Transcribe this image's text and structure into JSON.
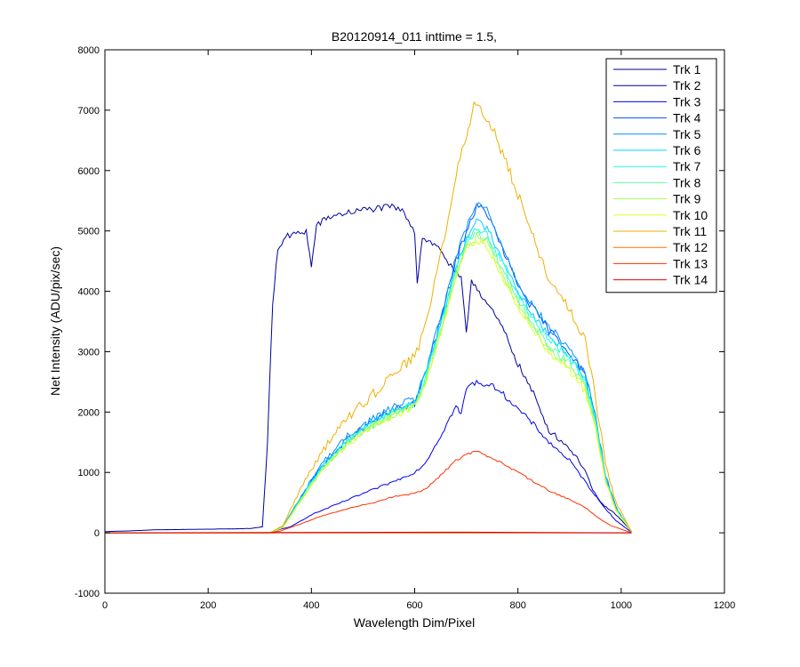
{
  "chart_data": {
    "type": "line",
    "title": "B20120914_011 inttime = 1.5,",
    "xlabel": "Wavelength Dim/Pixel",
    "ylabel": "Net Intensity (ADU/pix/sec)",
    "xlim": [
      0,
      1200
    ],
    "ylim": [
      -1000,
      8000
    ],
    "xticks": [
      0,
      200,
      400,
      600,
      800,
      1000,
      1200
    ],
    "yticks": [
      -1000,
      0,
      1000,
      2000,
      3000,
      4000,
      5000,
      6000,
      7000,
      8000
    ],
    "grid": false,
    "legend_position": "top-right",
    "series": [
      {
        "name": "Trk 1",
        "color": "#00008f",
        "noise": 0,
        "points": [
          [
            0,
            0
          ],
          [
            1020,
            0
          ]
        ]
      },
      {
        "name": "Trk 2",
        "color": "#00009f",
        "noise": 110,
        "points": [
          [
            0,
            20
          ],
          [
            40,
            30
          ],
          [
            100,
            50
          ],
          [
            200,
            60
          ],
          [
            280,
            70
          ],
          [
            305,
            100
          ],
          [
            315,
            1500
          ],
          [
            325,
            3800
          ],
          [
            335,
            4700
          ],
          [
            350,
            4900
          ],
          [
            390,
            5000
          ],
          [
            400,
            4400
          ],
          [
            410,
            5100
          ],
          [
            440,
            5250
          ],
          [
            500,
            5350
          ],
          [
            560,
            5400
          ],
          [
            580,
            5300
          ],
          [
            600,
            5000
          ],
          [
            605,
            4150
          ],
          [
            615,
            4900
          ],
          [
            650,
            4700
          ],
          [
            670,
            4400
          ],
          [
            690,
            4200
          ],
          [
            700,
            3300
          ],
          [
            710,
            4200
          ],
          [
            740,
            3800
          ],
          [
            770,
            3400
          ],
          [
            800,
            2800
          ],
          [
            830,
            2300
          ],
          [
            860,
            1700
          ],
          [
            900,
            1400
          ],
          [
            930,
            1050
          ],
          [
            945,
            700
          ],
          [
            960,
            500
          ],
          [
            990,
            300
          ],
          [
            1010,
            120
          ],
          [
            1020,
            20
          ]
        ]
      },
      {
        "name": "Trk 3",
        "color": "#0000ef",
        "noise": 90,
        "points": [
          [
            0,
            0
          ],
          [
            320,
            0
          ],
          [
            340,
            60
          ],
          [
            360,
            100
          ],
          [
            400,
            300
          ],
          [
            500,
            650
          ],
          [
            560,
            850
          ],
          [
            600,
            1000
          ],
          [
            620,
            1150
          ],
          [
            650,
            1600
          ],
          [
            680,
            2100
          ],
          [
            690,
            1950
          ],
          [
            700,
            2400
          ],
          [
            720,
            2500
          ],
          [
            760,
            2400
          ],
          [
            800,
            2050
          ],
          [
            830,
            1800
          ],
          [
            860,
            1500
          ],
          [
            900,
            1200
          ],
          [
            930,
            850
          ],
          [
            960,
            500
          ],
          [
            990,
            200
          ],
          [
            1020,
            10
          ]
        ]
      },
      {
        "name": "Trk 4",
        "color": "#0050ff",
        "noise": 140,
        "points": [
          [
            0,
            0
          ],
          [
            320,
            0
          ],
          [
            345,
            100
          ],
          [
            380,
            600
          ],
          [
            420,
            1100
          ],
          [
            470,
            1550
          ],
          [
            520,
            1850
          ],
          [
            565,
            2050
          ],
          [
            600,
            2150
          ],
          [
            620,
            2600
          ],
          [
            650,
            3500
          ],
          [
            680,
            4500
          ],
          [
            700,
            5000
          ],
          [
            720,
            5400
          ],
          [
            740,
            5300
          ],
          [
            770,
            4700
          ],
          [
            800,
            4100
          ],
          [
            830,
            3700
          ],
          [
            860,
            3350
          ],
          [
            900,
            3000
          ],
          [
            930,
            2600
          ],
          [
            950,
            1900
          ],
          [
            970,
            900
          ],
          [
            990,
            400
          ],
          [
            1020,
            20
          ]
        ]
      },
      {
        "name": "Trk 5",
        "color": "#0090ff",
        "noise": 140,
        "points": [
          [
            0,
            0
          ],
          [
            320,
            0
          ],
          [
            345,
            100
          ],
          [
            380,
            600
          ],
          [
            420,
            1150
          ],
          [
            470,
            1600
          ],
          [
            520,
            1900
          ],
          [
            565,
            2100
          ],
          [
            600,
            2200
          ],
          [
            620,
            2650
          ],
          [
            650,
            3550
          ],
          [
            680,
            4550
          ],
          [
            700,
            5050
          ],
          [
            720,
            5450
          ],
          [
            740,
            5350
          ],
          [
            770,
            4750
          ],
          [
            800,
            4150
          ],
          [
            830,
            3750
          ],
          [
            860,
            3400
          ],
          [
            900,
            3050
          ],
          [
            930,
            2650
          ],
          [
            950,
            1950
          ],
          [
            970,
            950
          ],
          [
            990,
            420
          ],
          [
            1020,
            20
          ]
        ]
      },
      {
        "name": "Trk 6",
        "color": "#00d0ff",
        "noise": 130,
        "points": [
          [
            0,
            0
          ],
          [
            320,
            0
          ],
          [
            345,
            90
          ],
          [
            380,
            580
          ],
          [
            420,
            1100
          ],
          [
            470,
            1550
          ],
          [
            520,
            1850
          ],
          [
            565,
            2050
          ],
          [
            600,
            2150
          ],
          [
            620,
            2600
          ],
          [
            650,
            3450
          ],
          [
            680,
            4400
          ],
          [
            700,
            4900
          ],
          [
            720,
            5150
          ],
          [
            740,
            5050
          ],
          [
            770,
            4550
          ],
          [
            800,
            4000
          ],
          [
            830,
            3600
          ],
          [
            860,
            3250
          ],
          [
            900,
            2950
          ],
          [
            930,
            2550
          ],
          [
            950,
            1900
          ],
          [
            970,
            900
          ],
          [
            990,
            400
          ],
          [
            1020,
            20
          ]
        ]
      },
      {
        "name": "Trk 7",
        "color": "#20ffdf",
        "noise": 130,
        "points": [
          [
            0,
            0
          ],
          [
            320,
            0
          ],
          [
            345,
            90
          ],
          [
            380,
            560
          ],
          [
            420,
            1080
          ],
          [
            470,
            1530
          ],
          [
            520,
            1830
          ],
          [
            565,
            2020
          ],
          [
            600,
            2120
          ],
          [
            620,
            2550
          ],
          [
            650,
            3400
          ],
          [
            680,
            4350
          ],
          [
            700,
            4850
          ],
          [
            720,
            5050
          ],
          [
            740,
            4950
          ],
          [
            770,
            4450
          ],
          [
            800,
            3950
          ],
          [
            830,
            3550
          ],
          [
            860,
            3200
          ],
          [
            900,
            2900
          ],
          [
            930,
            2500
          ],
          [
            950,
            1850
          ],
          [
            970,
            880
          ],
          [
            990,
            390
          ],
          [
            1020,
            20
          ]
        ]
      },
      {
        "name": "Trk 8",
        "color": "#60ff9f",
        "noise": 130,
        "points": [
          [
            0,
            0
          ],
          [
            320,
            0
          ],
          [
            345,
            90
          ],
          [
            380,
            550
          ],
          [
            420,
            1050
          ],
          [
            470,
            1500
          ],
          [
            520,
            1800
          ],
          [
            565,
            2000
          ],
          [
            600,
            2100
          ],
          [
            620,
            2500
          ],
          [
            650,
            3350
          ],
          [
            680,
            4300
          ],
          [
            700,
            4800
          ],
          [
            720,
            4950
          ],
          [
            740,
            4850
          ],
          [
            770,
            4350
          ],
          [
            800,
            3850
          ],
          [
            830,
            3450
          ],
          [
            860,
            3100
          ],
          [
            900,
            2800
          ],
          [
            930,
            2450
          ],
          [
            950,
            1800
          ],
          [
            970,
            860
          ],
          [
            990,
            380
          ],
          [
            1020,
            20
          ]
        ]
      },
      {
        "name": "Trk 9",
        "color": "#a0ff5f",
        "noise": 130,
        "points": [
          [
            0,
            0
          ],
          [
            320,
            0
          ],
          [
            345,
            90
          ],
          [
            380,
            540
          ],
          [
            420,
            1030
          ],
          [
            470,
            1480
          ],
          [
            520,
            1780
          ],
          [
            565,
            1980
          ],
          [
            600,
            2080
          ],
          [
            620,
            2480
          ],
          [
            650,
            3300
          ],
          [
            680,
            4250
          ],
          [
            700,
            4750
          ],
          [
            720,
            4900
          ],
          [
            740,
            4800
          ],
          [
            770,
            4300
          ],
          [
            800,
            3800
          ],
          [
            830,
            3400
          ],
          [
            860,
            3050
          ],
          [
            900,
            2750
          ],
          [
            930,
            2400
          ],
          [
            950,
            1780
          ],
          [
            970,
            850
          ],
          [
            990,
            375
          ],
          [
            1020,
            20
          ]
        ]
      },
      {
        "name": "Trk 10",
        "color": "#dfff20",
        "noise": 130,
        "points": [
          [
            0,
            0
          ],
          [
            320,
            0
          ],
          [
            345,
            90
          ],
          [
            380,
            540
          ],
          [
            420,
            1030
          ],
          [
            470,
            1470
          ],
          [
            520,
            1770
          ],
          [
            565,
            1970
          ],
          [
            600,
            2070
          ],
          [
            620,
            2470
          ],
          [
            650,
            3280
          ],
          [
            680,
            4220
          ],
          [
            700,
            4720
          ],
          [
            720,
            4850
          ],
          [
            740,
            4750
          ],
          [
            770,
            4250
          ],
          [
            800,
            3750
          ],
          [
            830,
            3350
          ],
          [
            860,
            3000
          ],
          [
            900,
            2700
          ],
          [
            930,
            2350
          ],
          [
            950,
            1750
          ],
          [
            970,
            840
          ],
          [
            990,
            370
          ],
          [
            1020,
            20
          ]
        ]
      },
      {
        "name": "Trk 11",
        "color": "#efaf00",
        "noise": 180,
        "points": [
          [
            0,
            0
          ],
          [
            320,
            0
          ],
          [
            345,
            120
          ],
          [
            380,
            750
          ],
          [
            420,
            1350
          ],
          [
            470,
            1900
          ],
          [
            520,
            2300
          ],
          [
            565,
            2700
          ],
          [
            600,
            2900
          ],
          [
            620,
            3400
          ],
          [
            650,
            4600
          ],
          [
            680,
            5900
          ],
          [
            700,
            6600
          ],
          [
            715,
            7100
          ],
          [
            740,
            6900
          ],
          [
            770,
            6300
          ],
          [
            800,
            5600
          ],
          [
            830,
            4900
          ],
          [
            860,
            4200
          ],
          [
            900,
            3700
          ],
          [
            930,
            3200
          ],
          [
            950,
            2300
          ],
          [
            970,
            1100
          ],
          [
            990,
            500
          ],
          [
            1020,
            20
          ]
        ]
      },
      {
        "name": "Trk 12",
        "color": "#ff7000",
        "noise": 0,
        "points": [
          [
            0,
            0
          ],
          [
            1020,
            0
          ]
        ]
      },
      {
        "name": "Trk 13",
        "color": "#ff3000",
        "noise": 70,
        "points": [
          [
            0,
            0
          ],
          [
            320,
            0
          ],
          [
            340,
            30
          ],
          [
            380,
            150
          ],
          [
            420,
            280
          ],
          [
            470,
            400
          ],
          [
            520,
            500
          ],
          [
            560,
            600
          ],
          [
            600,
            650
          ],
          [
            620,
            720
          ],
          [
            650,
            950
          ],
          [
            680,
            1200
          ],
          [
            700,
            1300
          ],
          [
            720,
            1350
          ],
          [
            760,
            1200
          ],
          [
            800,
            1000
          ],
          [
            830,
            850
          ],
          [
            860,
            700
          ],
          [
            900,
            550
          ],
          [
            930,
            420
          ],
          [
            955,
            250
          ],
          [
            980,
            120
          ],
          [
            1020,
            0
          ]
        ]
      },
      {
        "name": "Trk 14",
        "color": "#df0000",
        "noise": 0,
        "points": [
          [
            0,
            0
          ],
          [
            700,
            10
          ],
          [
            1020,
            0
          ]
        ]
      }
    ]
  }
}
